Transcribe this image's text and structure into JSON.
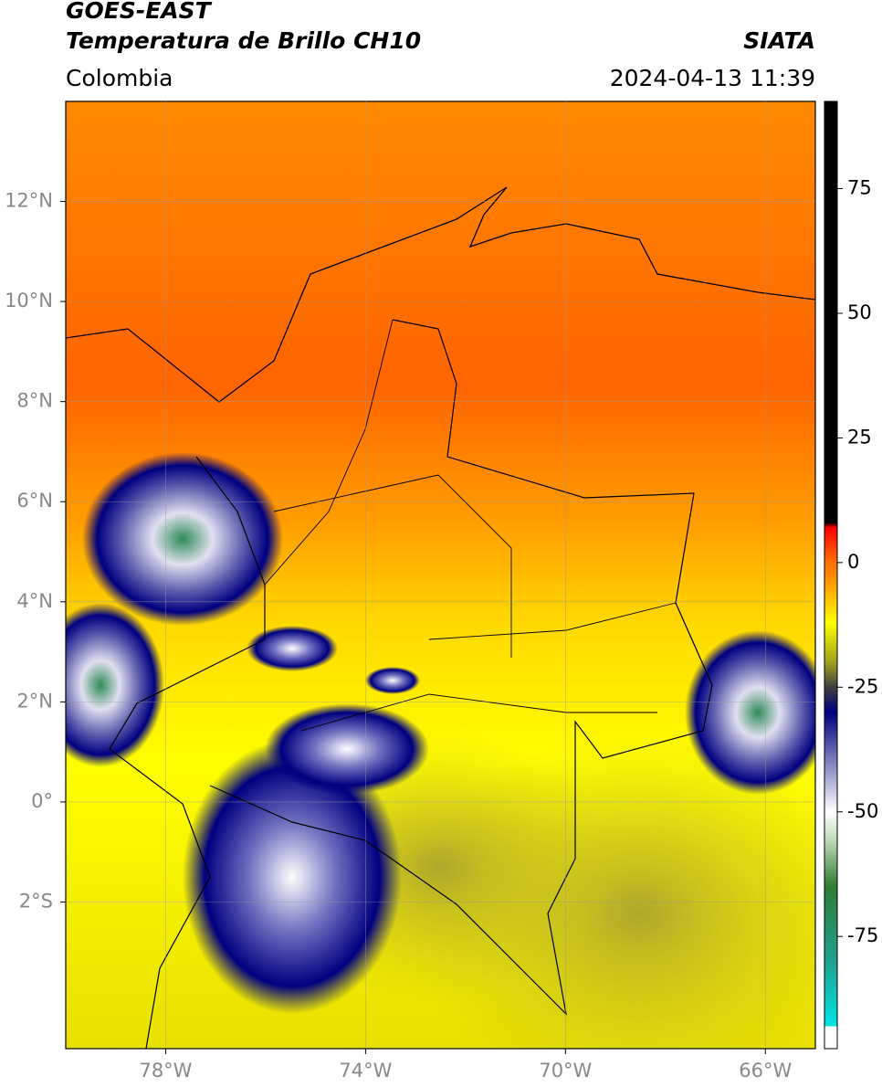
{
  "chart_data": {
    "type": "map",
    "title": "GOES-EAST",
    "subtitle": "Temperatura de Brillo CH10",
    "source": "SIATA",
    "region": "Colombia",
    "datetime": "2024-04-13 11:39",
    "xlim": [
      -80,
      -65
    ],
    "ylim": [
      -4.93,
      14
    ],
    "xticks": [
      {
        "value": -78,
        "label": "78°W"
      },
      {
        "value": -74,
        "label": "74°W"
      },
      {
        "value": -70,
        "label": "70°W"
      },
      {
        "value": -66,
        "label": "66°W"
      }
    ],
    "yticks": [
      {
        "value": 12,
        "label": "12°N"
      },
      {
        "value": 10,
        "label": "10°N"
      },
      {
        "value": 8,
        "label": "8°N"
      },
      {
        "value": 6,
        "label": "6°N"
      },
      {
        "value": 4,
        "label": "4°N"
      },
      {
        "value": 2,
        "label": "2°N"
      },
      {
        "value": 0,
        "label": "0°"
      },
      {
        "value": -2,
        "label": "2°S"
      }
    ],
    "grid": true,
    "clim": [
      -97.5,
      92.5
    ],
    "cticks": [
      75,
      50,
      25,
      0,
      -25,
      -50,
      -75
    ],
    "colorscale": [
      [
        -97.5,
        "#ffffff"
      ],
      [
        -93,
        "#ffffff"
      ],
      [
        -93,
        "#00e5e5"
      ],
      [
        -80,
        "#20a090"
      ],
      [
        -65,
        "#2e7d32"
      ],
      [
        -55,
        "#c8e0c0"
      ],
      [
        -50,
        "#ffffff"
      ],
      [
        -40,
        "#8080c0"
      ],
      [
        -30,
        "#000080"
      ],
      [
        -25,
        "#404040"
      ],
      [
        -20,
        "#a0a020"
      ],
      [
        -12,
        "#ffff00"
      ],
      [
        -5,
        "#ffa500"
      ],
      [
        0,
        "#ff7000"
      ],
      [
        7,
        "#ff0000"
      ],
      [
        8,
        "#000000"
      ],
      [
        92.5,
        "#000000"
      ]
    ]
  }
}
